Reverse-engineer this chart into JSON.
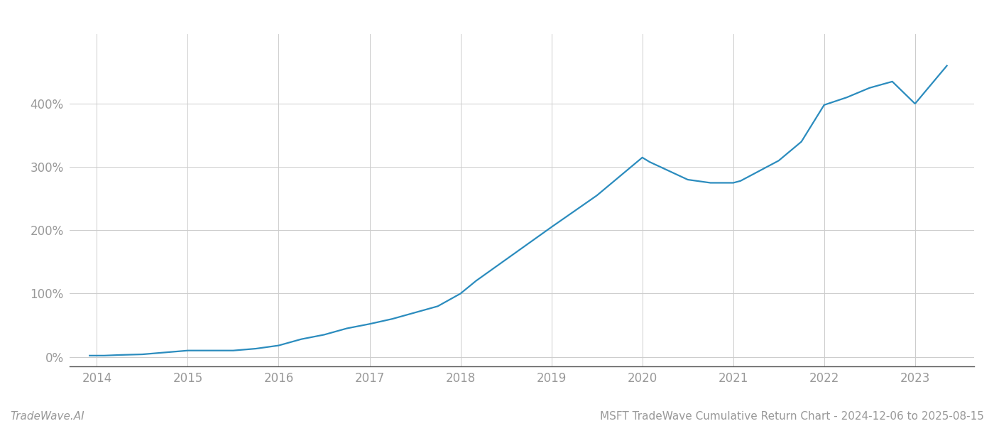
{
  "title": "MSFT TradeWave Cumulative Return Chart - 2024-12-06 to 2025-08-15",
  "watermark": "TradeWave.AI",
  "line_color": "#2b8cbe",
  "background_color": "#ffffff",
  "grid_color": "#cccccc",
  "x_years": [
    2014,
    2015,
    2016,
    2017,
    2018,
    2019,
    2020,
    2021,
    2022,
    2023
  ],
  "x_data": [
    2013.92,
    2014.0,
    2014.08,
    2014.25,
    2014.5,
    2014.75,
    2015.0,
    2015.25,
    2015.5,
    2015.75,
    2016.0,
    2016.25,
    2016.5,
    2016.75,
    2017.0,
    2017.25,
    2017.5,
    2017.75,
    2018.0,
    2018.17,
    2019.0,
    2019.25,
    2019.5,
    2019.75,
    2020.0,
    2020.08,
    2020.5,
    2020.75,
    2021.0,
    2021.08,
    2021.5,
    2021.75,
    2022.0,
    2022.25,
    2022.5,
    2022.75,
    2023.0,
    2023.35
  ],
  "y_data": [
    2,
    2,
    2,
    3,
    4,
    7,
    10,
    10,
    10,
    13,
    18,
    28,
    35,
    45,
    52,
    60,
    70,
    80,
    100,
    120,
    205,
    230,
    255,
    285,
    315,
    308,
    280,
    275,
    275,
    278,
    310,
    340,
    398,
    410,
    425,
    435,
    400,
    460
  ],
  "ylim": [
    -15,
    510
  ],
  "yticks": [
    0,
    100,
    200,
    300,
    400
  ],
  "xlim": [
    2013.7,
    2023.65
  ],
  "title_fontsize": 11,
  "tick_fontsize": 12,
  "watermark_fontsize": 11,
  "line_width": 1.6
}
